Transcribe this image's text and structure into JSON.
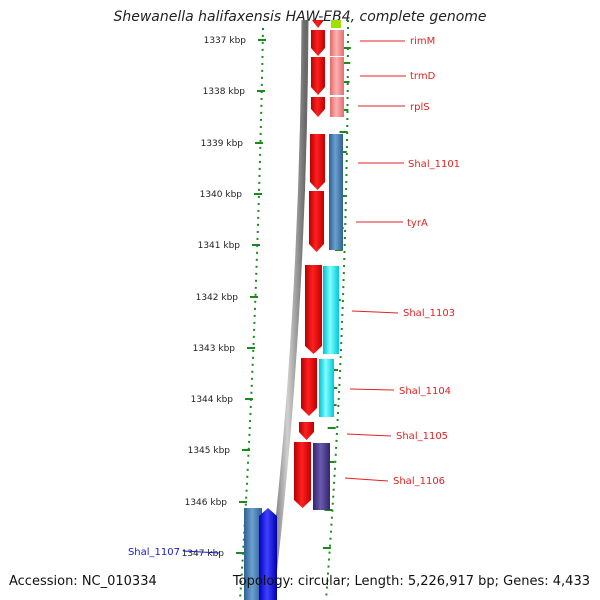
{
  "title": "Shewanella halifaxensis HAW-EB4, complete genome",
  "footer": {
    "accession": "Accession: NC_010334",
    "summary": "Topology: circular; Length: 5,226,917 bp; Genes: 4,433"
  },
  "ruler": {
    "ticks": [
      "1337 kbp",
      "1338 kbp",
      "1339 kbp",
      "1340 kbp",
      "1341 kbp",
      "1342 kbp",
      "1343 kbp",
      "1344 kbp",
      "1345 kbp",
      "1346 kbp",
      "1347 kbp"
    ]
  },
  "genes": [
    {
      "name": "rimM",
      "color": "#e32222"
    },
    {
      "name": "trmD",
      "color": "#e32222"
    },
    {
      "name": "rplS",
      "color": "#e32222"
    },
    {
      "name": "Shal_1101",
      "color": "#e32222"
    },
    {
      "name": "tyrA",
      "color": "#e32222"
    },
    {
      "name": "Shal_1103",
      "color": "#e32222"
    },
    {
      "name": "Shal_1104",
      "color": "#e32222"
    },
    {
      "name": "Shal_1105",
      "color": "#e32222"
    },
    {
      "name": "Shal_1106",
      "color": "#e32222"
    },
    {
      "name": "Shal_1107",
      "color": "#1a1ad0"
    }
  ],
  "colors": {
    "ruler": "#1a8a1a",
    "strand_red": "#ff0000",
    "pink": "#f08080",
    "steel_blue": "#4a7eb0",
    "cyan": "#00e5f0",
    "purple": "#4a3a8a",
    "blue": "#0000ff",
    "backbone": "#808080",
    "green_tip": "#a0e000"
  }
}
